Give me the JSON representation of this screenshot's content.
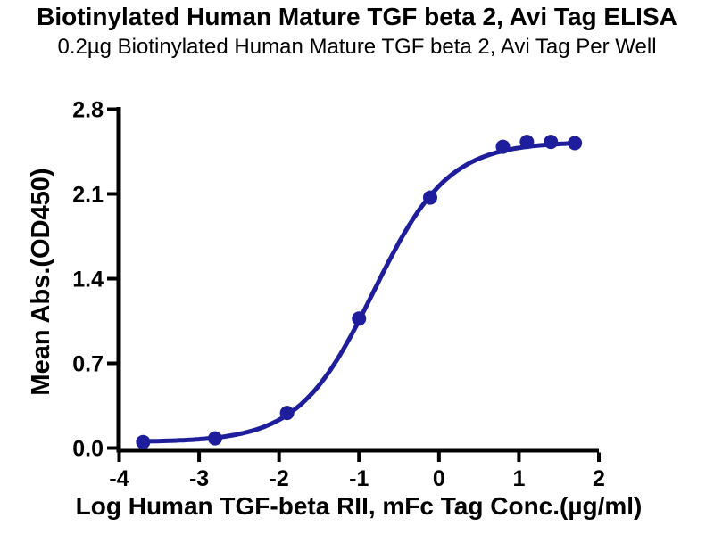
{
  "header": {
    "title": "Biotinylated Human Mature TGF beta 2, Avi Tag ELISA",
    "subtitle": "0.2µg Biotinylated Human Mature TGF beta 2, Avi Tag Per Well"
  },
  "chart_data": {
    "type": "scatter",
    "title": "Biotinylated Human Mature TGF beta 2, Avi Tag ELISA",
    "subtitle": "0.2µg Biotinylated Human Mature TGF beta 2, Avi Tag Per Well",
    "xlabel": "Log Human TGF-beta RII, mFc Tag Conc.(µg/ml)",
    "ylabel": "Mean Abs.(OD450)",
    "xlim": [
      -4,
      2
    ],
    "ylim": [
      0,
      2.8
    ],
    "grid": false,
    "legend": "none",
    "axis_color": "#000000",
    "x_ticks": [
      {
        "value": -4,
        "label": "-4"
      },
      {
        "value": -3,
        "label": "-3"
      },
      {
        "value": -2,
        "label": "-2"
      },
      {
        "value": -1,
        "label": "-1"
      },
      {
        "value": 0,
        "label": "0"
      },
      {
        "value": 1,
        "label": "1"
      },
      {
        "value": 2,
        "label": "2"
      }
    ],
    "y_ticks": [
      {
        "value": 0.0,
        "label": "0.0"
      },
      {
        "value": 0.7,
        "label": "0.7"
      },
      {
        "value": 1.4,
        "label": "1.4"
      },
      {
        "value": 2.1,
        "label": "2.1"
      },
      {
        "value": 2.8,
        "label": "2.8"
      }
    ],
    "series": [
      {
        "name": "Human TGF-beta RII, mFc Tag",
        "color": "#1e1e9c",
        "marker": "circle",
        "marker_radius": 8,
        "line_width": 5,
        "points": [
          {
            "x": -3.7,
            "y": 0.05
          },
          {
            "x": -2.8,
            "y": 0.08
          },
          {
            "x": -1.9,
            "y": 0.29
          },
          {
            "x": -1.0,
            "y": 1.07
          },
          {
            "x": -0.11,
            "y": 2.07
          },
          {
            "x": 0.8,
            "y": 2.49
          },
          {
            "x": 1.1,
            "y": 2.53
          },
          {
            "x": 1.4,
            "y": 2.53
          },
          {
            "x": 1.7,
            "y": 2.52
          }
        ],
        "fit": {
          "model": "4PL",
          "bottom": 0.05,
          "top": 2.53,
          "logEC50": -0.82,
          "hillslope": 0.93
        }
      }
    ]
  }
}
